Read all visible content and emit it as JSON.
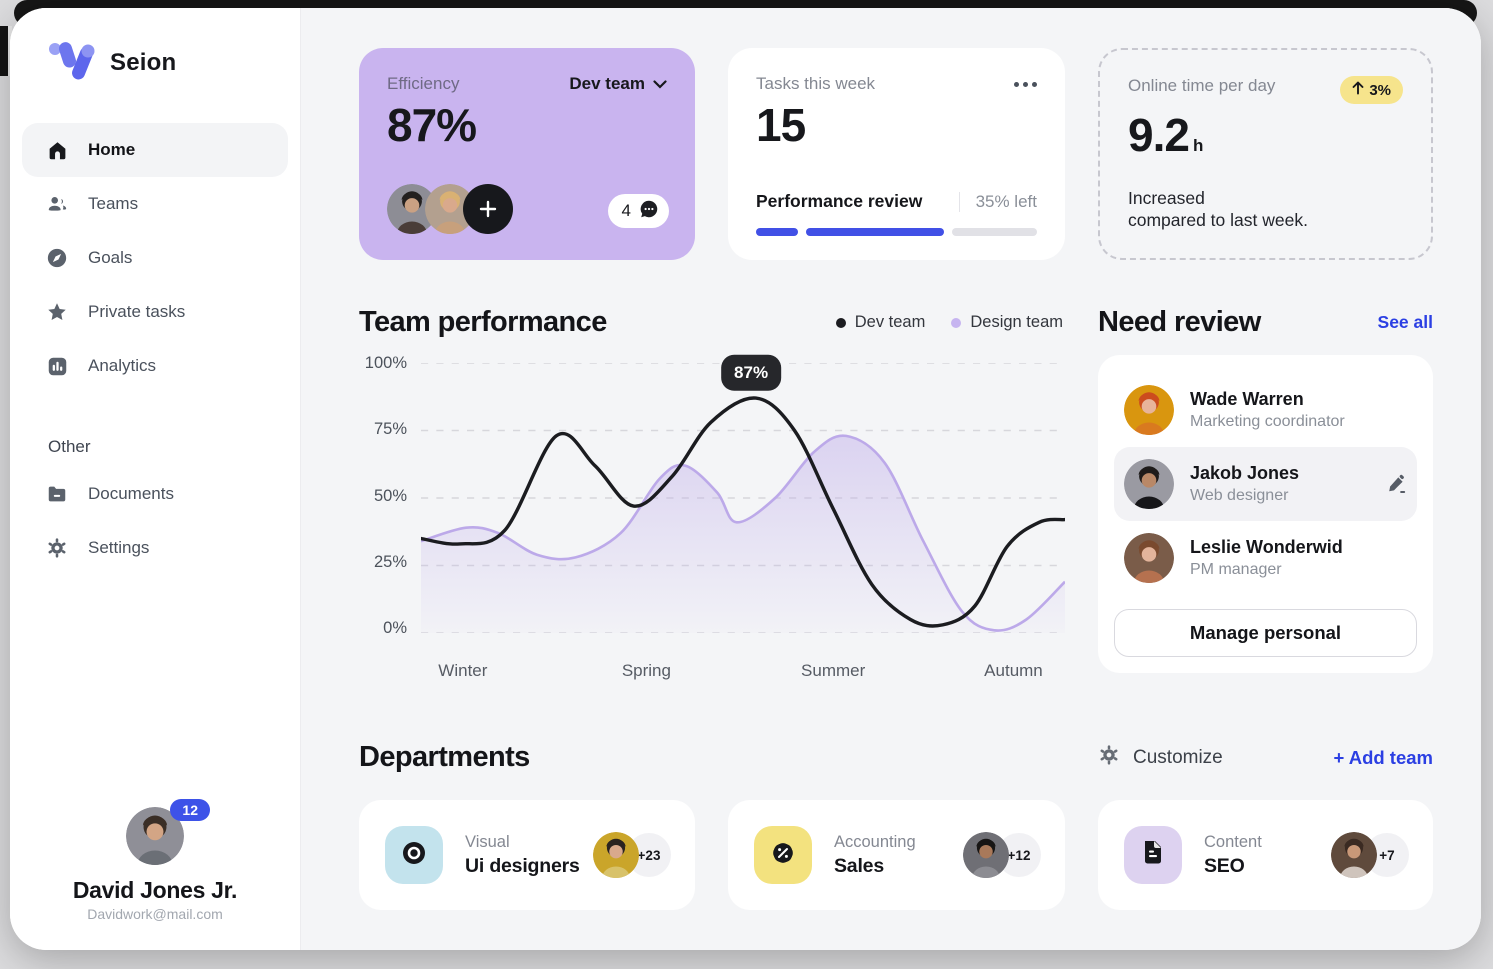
{
  "colors": {
    "accent_blue": "#2b3fe3",
    "progress_blue": "#4150e6",
    "progress_gray": "#e1e1e6",
    "efficiency_card_purple": "#c9b4ef",
    "delta_pill_yellow": "#f6e48c",
    "dev_team_line": "#1b1c20",
    "design_team_line": "#bca9e9",
    "design_team_fill": "#cab9ee"
  },
  "sidebar": {
    "brand": "Seion",
    "nav": [
      {
        "label": "Home",
        "icon": "home-icon",
        "active": true
      },
      {
        "label": "Teams",
        "icon": "teams-icon",
        "active": false
      },
      {
        "label": "Goals",
        "icon": "goals-icon",
        "active": false
      },
      {
        "label": "Private tasks",
        "icon": "star-icon",
        "active": false
      },
      {
        "label": "Analytics",
        "icon": "analytics-icon",
        "active": false
      }
    ],
    "other_label": "Other",
    "other_nav": [
      {
        "label": "Documents",
        "icon": "documents-icon"
      },
      {
        "label": "Settings",
        "icon": "settings-icon"
      }
    ],
    "profile": {
      "name": "David Jones Jr.",
      "email": "Davidwork@mail.com",
      "badge": "12"
    }
  },
  "cards": {
    "efficiency": {
      "label": "Efficiency",
      "value": "87%",
      "team_selector": "Dev team",
      "comments_count": "4"
    },
    "tasks": {
      "label": "Tasks this week",
      "value": "15",
      "task_name": "Performance review",
      "remaining": "35% left",
      "progress_segments": [
        {
          "color": "#4150e6",
          "width_pct": 16
        },
        {
          "color": "#4150e6",
          "width_pct": 52
        },
        {
          "color": "#e1e1e6",
          "width_pct": 32
        }
      ]
    },
    "online": {
      "label": "Online time per day",
      "value": "9.2",
      "unit": "h",
      "delta": "3%",
      "note_line1": "Increased",
      "note_line2": "compared to last week."
    }
  },
  "performance": {
    "title": "Team performance"
  },
  "chart_data": {
    "type": "line",
    "title": "Team performance",
    "categories": [
      "Winter",
      "Spring",
      "Summer",
      "Autumn"
    ],
    "category_positions_pct": [
      6.5,
      35,
      64,
      92
    ],
    "ylabels": [
      "100%",
      "75%",
      "50%",
      "25%",
      "0%"
    ],
    "ylim": [
      0,
      100
    ],
    "grid": "dashed-horizontal",
    "legend_position": "top-right",
    "series": [
      {
        "name": "Dev team",
        "color": "#1b1c20",
        "style": "line",
        "points": [
          [
            0,
            35
          ],
          [
            6,
            33
          ],
          [
            13,
            38
          ],
          [
            21,
            73
          ],
          [
            27,
            62
          ],
          [
            33,
            47
          ],
          [
            39,
            58
          ],
          [
            45,
            78
          ],
          [
            52,
            87
          ],
          [
            58,
            75
          ],
          [
            64,
            46
          ],
          [
            70,
            18
          ],
          [
            76,
            5
          ],
          [
            81,
            3
          ],
          [
            86,
            10
          ],
          [
            91,
            32
          ],
          [
            96,
            41
          ],
          [
            100,
            42
          ]
        ]
      },
      {
        "name": "Design team",
        "color": "#bca9e9",
        "style": "area",
        "points": [
          [
            0,
            34
          ],
          [
            7,
            39
          ],
          [
            12,
            37
          ],
          [
            18,
            29
          ],
          [
            24,
            28
          ],
          [
            31,
            37
          ],
          [
            37,
            57
          ],
          [
            41,
            62
          ],
          [
            46,
            52
          ],
          [
            49,
            41
          ],
          [
            55,
            50
          ],
          [
            61,
            67
          ],
          [
            66,
            73
          ],
          [
            72,
            63
          ],
          [
            78,
            34
          ],
          [
            84,
            8
          ],
          [
            89,
            1
          ],
          [
            94,
            5
          ],
          [
            100,
            19
          ]
        ]
      }
    ],
    "tooltip": {
      "series": "Dev team",
      "label": "87%",
      "at_point": [
        52,
        87
      ]
    }
  },
  "need_review": {
    "title": "Need review",
    "see_all": "See all",
    "people": [
      {
        "name": "Wade Warren",
        "role": "Marketing coordinator",
        "highlighted": false
      },
      {
        "name": "Jakob Jones",
        "role": "Web designer",
        "highlighted": true
      },
      {
        "name": "Leslie Wonderwid",
        "role": "PM manager",
        "highlighted": false
      }
    ],
    "manage_button": "Manage personal"
  },
  "departments": {
    "title": "Departments",
    "customize": "Customize",
    "add_team": "+ Add team",
    "cards": [
      {
        "label": "Visual",
        "name": "Ui designers",
        "count": "+23",
        "tile_color": "#c3e3ed",
        "tile_icon": "eye-icon"
      },
      {
        "label": "Accounting",
        "name": "Sales",
        "count": "+12",
        "tile_color": "#f3e27f",
        "tile_icon": "percent-badge-icon"
      },
      {
        "label": "Content",
        "name": "SEO",
        "count": "+7",
        "tile_color": "#ddd2f0",
        "tile_icon": "document-icon"
      }
    ]
  }
}
